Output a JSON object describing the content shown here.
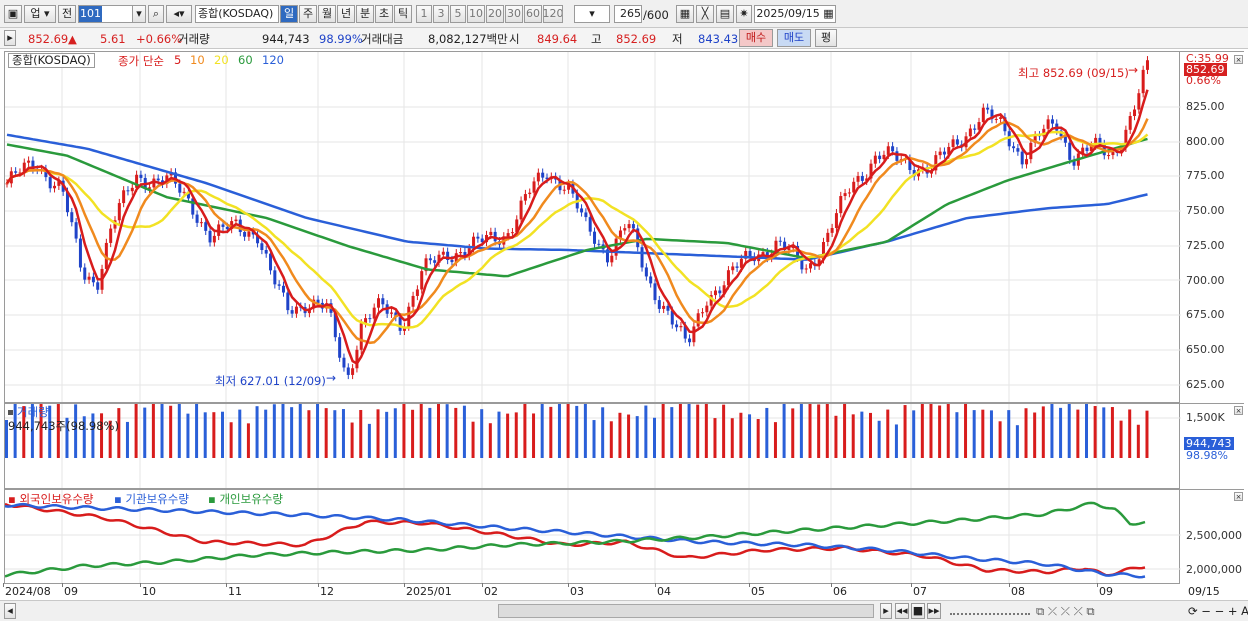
{
  "toolbar": {
    "market_btn": "업",
    "prev_btn": "전",
    "code": "101",
    "name": "종합(KOSDAQ)",
    "periods": [
      "일",
      "주",
      "월",
      "년",
      "분",
      "초",
      "틱"
    ],
    "active_period": "일",
    "nums": [
      "1",
      "3",
      "5",
      "10",
      "20",
      "30",
      "60",
      "120"
    ],
    "count": "265",
    "count_max": "/600",
    "date": "2025/09/15"
  },
  "quote": {
    "price": "852.69",
    "arrow": "▲",
    "change": "5.61",
    "pct": "+0.66%",
    "vol_label": "거래량",
    "volume": "944,743",
    "vol_pct": "98.99%",
    "amount_label": "거래대금",
    "amount": "8,082,127백만",
    "open_label": "시",
    "open": "849.64",
    "high_label": "고",
    "high": "852.69",
    "low_label": "저",
    "low": "843.43",
    "buy": "매수",
    "sell": "매도",
    "flat": "평"
  },
  "main": {
    "title": "종합(KOSDAQ)",
    "ma_label": "종가 단순",
    "ma": [
      "5",
      "10",
      "20",
      "60",
      "120"
    ],
    "ma_colors": [
      "#d81c1c",
      "#f08a1e",
      "#f2e224",
      "#2a9a3c",
      "#2a5fd8"
    ],
    "high_note": "최고 852.69 (09/15)",
    "low_note": "최저 627.01 (12/09)",
    "cur_label": "C:35.99",
    "cur_price": "852.69",
    "cur_pct": "0.66%",
    "yticks": [
      "825.00",
      "800.00",
      "775.00",
      "750.00",
      "725.00",
      "700.00",
      "675.00",
      "650.00",
      "625.00"
    ]
  },
  "volume_panel": {
    "title": "거래량",
    "value": "944,743주(98.98%)",
    "axis_top": "1,500K",
    "cur": "944,743",
    "cur_pct": "98.98%"
  },
  "holdings": {
    "series": [
      "외국인보유수량",
      "기관보유수량",
      "개인보유수량"
    ],
    "colors": [
      "#d81c1c",
      "#2a5fd8",
      "#2a9a3c"
    ],
    "yticks": [
      "2,500,000",
      "2,000,000"
    ]
  },
  "xaxis": {
    "labels": [
      "2024/08",
      "09",
      "10",
      "11",
      "12",
      "2025/01",
      "02",
      "03",
      "04",
      "05",
      "06",
      "07",
      "08",
      "09"
    ],
    "end": "09/15"
  }
}
